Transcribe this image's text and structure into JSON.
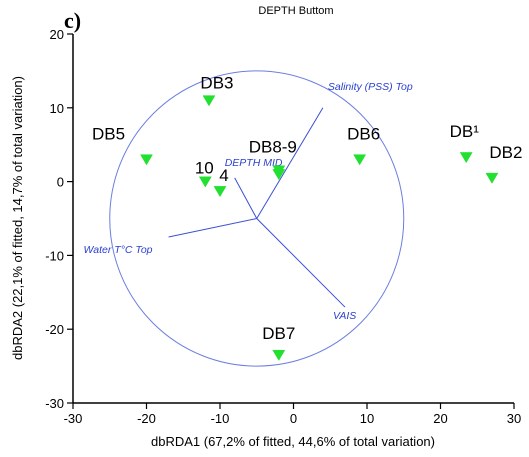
{
  "panel_letter": "c)",
  "chart_data": {
    "type": "scatter",
    "title": "DEPTH Buttom",
    "xlabel": "dbRDA1 (67,2% of fitted, 44,6% of total variation)",
    "ylabel": "dbRDA2 (22,1% of fitted, 14,7% of total variation)",
    "xlim": [
      -30,
      30
    ],
    "ylim": [
      -30,
      20
    ],
    "xticks": [
      -30,
      -20,
      -10,
      0,
      10,
      20,
      30
    ],
    "yticks": [
      -30,
      -20,
      -10,
      0,
      10,
      20
    ],
    "grid": false,
    "marker_color": "#22e030",
    "vector_color": "#2a3fd0",
    "points": [
      {
        "label": "DB3",
        "x": -11.5,
        "y": 11
      },
      {
        "label": "DB5",
        "x": -20,
        "y": 3
      },
      {
        "label": "DB6",
        "x": 9,
        "y": 3
      },
      {
        "label": "DB¹",
        "x": 23.5,
        "y": 3.3
      },
      {
        "label": "DB2",
        "x": 27,
        "y": 0.5
      },
      {
        "label": "DB8-9",
        "x": -2,
        "y": 1.5
      },
      {
        "label": "",
        "x": -2,
        "y": 1
      },
      {
        "label": "10",
        "x": -12,
        "y": 0
      },
      {
        "label": "4",
        "x": -10,
        "y": -1.3
      },
      {
        "label": "DB7",
        "x": -2,
        "y": -23.5
      }
    ],
    "circle": {
      "center": [
        -5,
        -5
      ],
      "radius": 20
    },
    "vectors": [
      {
        "label": "Salinity (PSS) Top",
        "end": [
          4,
          10
        ]
      },
      {
        "label": "DEPTH MID",
        "end": [
          -8,
          0.5
        ]
      },
      {
        "label": "Water T°C Top",
        "end": [
          -17,
          -7.5
        ]
      },
      {
        "label": "VAIS",
        "end": [
          7,
          -17
        ]
      }
    ]
  }
}
